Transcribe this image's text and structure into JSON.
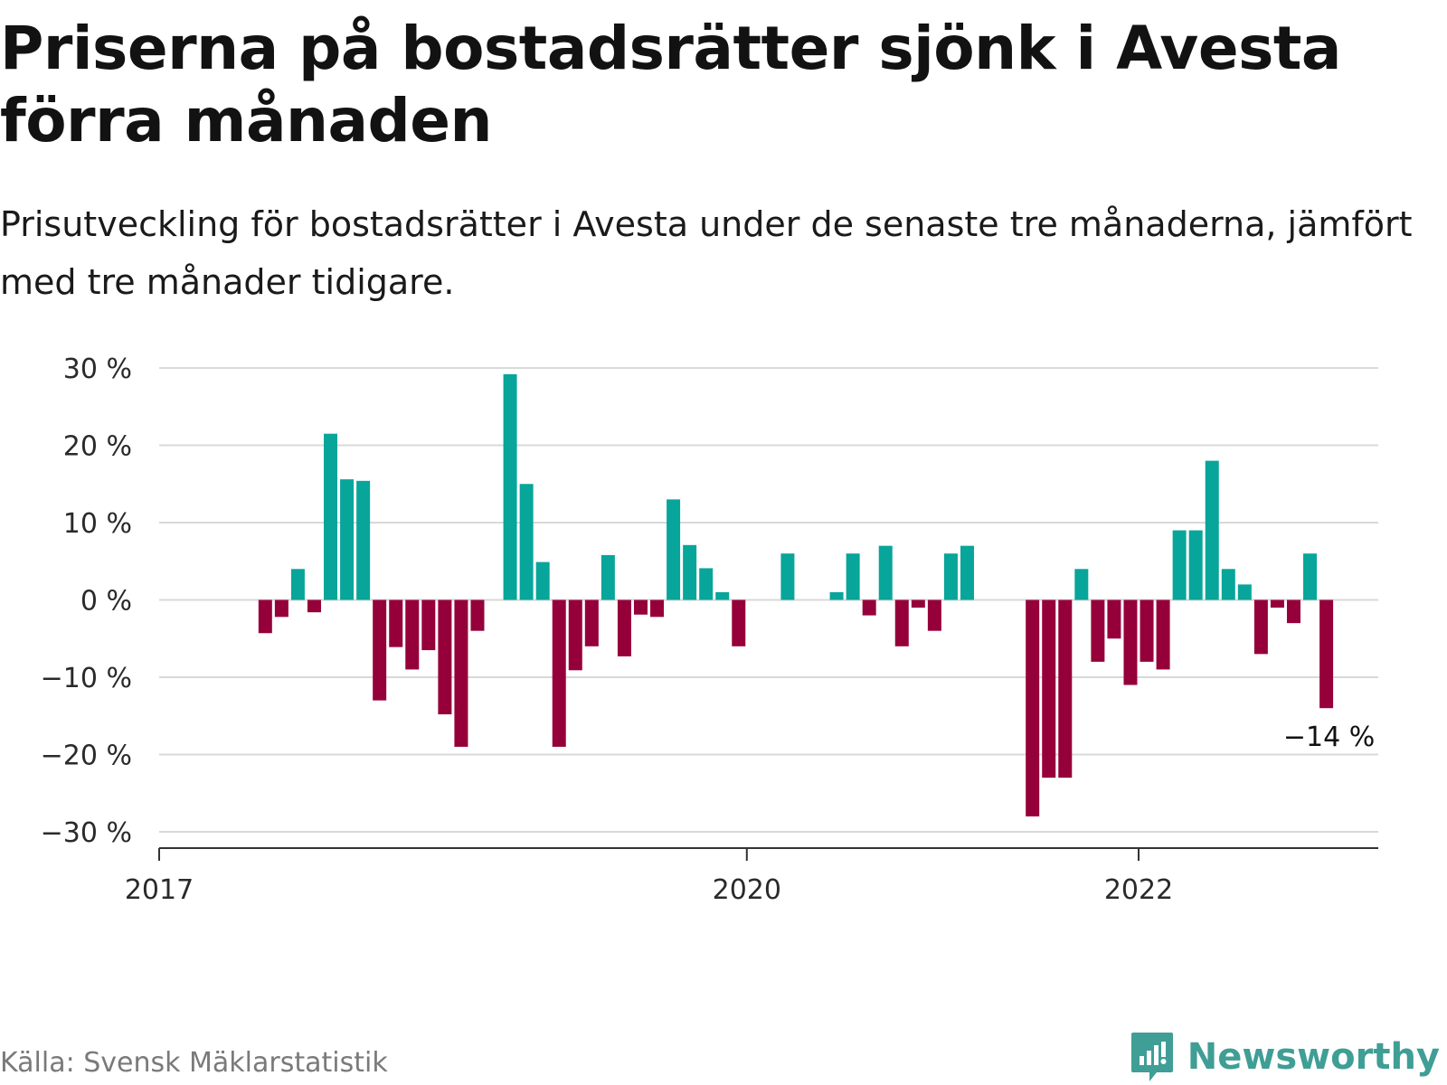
{
  "title": "Priserna på bostadsrätter sjönk i Avesta förra månaden",
  "subtitle": "Prisutveckling för bostadsrätter i Avesta under de senaste tre månaderna, jämfört med tre månader tidigare.",
  "source": "Källa: Svensk Mäklarstatistik",
  "brand": {
    "name": "Newsworthy",
    "icon": "newsworthy-logo-icon",
    "color": "#3f9e95"
  },
  "colors": {
    "positive": "#08a59a",
    "negative": "#96003a",
    "grid": "#d9d9d9",
    "axis": "#333333"
  },
  "chart_data": {
    "type": "bar",
    "x_start": "2017-01",
    "x_end": "2023-03",
    "x_ticks": [
      {
        "value": "2017-01",
        "label": "2017"
      },
      {
        "value": "2020-01",
        "label": "2020"
      },
      {
        "value": "2022-01",
        "label": "2022"
      }
    ],
    "y_ticks": [
      {
        "value": 30,
        "label": "30 %"
      },
      {
        "value": 20,
        "label": "20 %"
      },
      {
        "value": 10,
        "label": "10 %"
      },
      {
        "value": 0,
        "label": "0 %"
      },
      {
        "value": -10,
        "label": "−10 %"
      },
      {
        "value": -20,
        "label": "−20 %"
      },
      {
        "value": -30,
        "label": "−30 %"
      }
    ],
    "ylim": [
      -32,
      31
    ],
    "grid": true,
    "unit": "%",
    "points": [
      {
        "x": "2017-07",
        "y": -4.3
      },
      {
        "x": "2017-08",
        "y": -2.2
      },
      {
        "x": "2017-09",
        "y": 4.0
      },
      {
        "x": "2017-10",
        "y": -1.6
      },
      {
        "x": "2017-11",
        "y": 21.5
      },
      {
        "x": "2017-12",
        "y": 15.6
      },
      {
        "x": "2018-01",
        "y": 15.4
      },
      {
        "x": "2018-02",
        "y": -13.0
      },
      {
        "x": "2018-03",
        "y": -6.1
      },
      {
        "x": "2018-04",
        "y": -9.0
      },
      {
        "x": "2018-05",
        "y": -6.5
      },
      {
        "x": "2018-06",
        "y": -14.8
      },
      {
        "x": "2018-07",
        "y": -19.0
      },
      {
        "x": "2018-08",
        "y": -4.0
      },
      {
        "x": "2018-10",
        "y": 29.2
      },
      {
        "x": "2018-11",
        "y": 15.0
      },
      {
        "x": "2018-12",
        "y": 4.9
      },
      {
        "x": "2019-01",
        "y": -19.0
      },
      {
        "x": "2019-02",
        "y": -9.1
      },
      {
        "x": "2019-03",
        "y": -6.0
      },
      {
        "x": "2019-04",
        "y": 5.8
      },
      {
        "x": "2019-05",
        "y": -7.3
      },
      {
        "x": "2019-06",
        "y": -1.9
      },
      {
        "x": "2019-07",
        "y": -2.2
      },
      {
        "x": "2019-08",
        "y": 13.0
      },
      {
        "x": "2019-09",
        "y": 7.1
      },
      {
        "x": "2019-10",
        "y": 4.1
      },
      {
        "x": "2019-11",
        "y": 1.0
      },
      {
        "x": "2019-12",
        "y": -6.0
      },
      {
        "x": "2020-03",
        "y": 6.0
      },
      {
        "x": "2020-06",
        "y": 1.0
      },
      {
        "x": "2020-07",
        "y": 6.0
      },
      {
        "x": "2020-08",
        "y": -2.0
      },
      {
        "x": "2020-09",
        "y": 7.0
      },
      {
        "x": "2020-10",
        "y": -6.0
      },
      {
        "x": "2020-11",
        "y": -1.0
      },
      {
        "x": "2020-12",
        "y": -4.0
      },
      {
        "x": "2021-01",
        "y": 6.0
      },
      {
        "x": "2021-02",
        "y": 7.0
      },
      {
        "x": "2021-06",
        "y": -28.0
      },
      {
        "x": "2021-07",
        "y": -23.0
      },
      {
        "x": "2021-08",
        "y": -23.0
      },
      {
        "x": "2021-09",
        "y": 4.0
      },
      {
        "x": "2021-10",
        "y": -8.0
      },
      {
        "x": "2021-11",
        "y": -5.0
      },
      {
        "x": "2021-12",
        "y": -11.0
      },
      {
        "x": "2022-01",
        "y": -8.0
      },
      {
        "x": "2022-02",
        "y": -9.0
      },
      {
        "x": "2022-03",
        "y": 9.0
      },
      {
        "x": "2022-04",
        "y": 9.0
      },
      {
        "x": "2022-05",
        "y": 18.0
      },
      {
        "x": "2022-06",
        "y": 4.0
      },
      {
        "x": "2022-07",
        "y": 2.0
      },
      {
        "x": "2022-08",
        "y": -7.0
      },
      {
        "x": "2022-09",
        "y": -1.0
      },
      {
        "x": "2022-10",
        "y": -3.0
      },
      {
        "x": "2022-11",
        "y": 6.0
      },
      {
        "x": "2022-12",
        "y": -14.0
      }
    ],
    "annotation": {
      "x": "2022-12",
      "label": "−14 %"
    }
  }
}
